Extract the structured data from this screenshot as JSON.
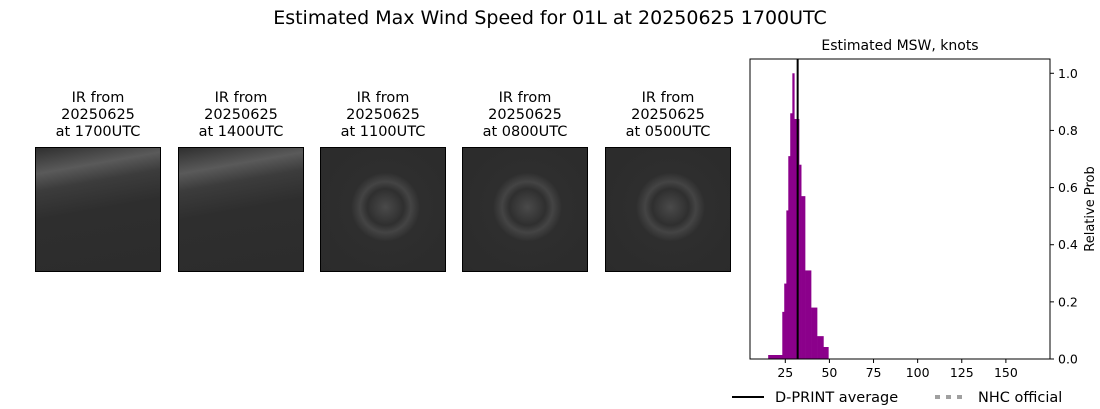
{
  "title": "Estimated Max Wind Speed for 01L at 20250625 1700UTC",
  "thumbnails": [
    {
      "l1": "IR from",
      "l2": "20250625",
      "l3": "at 1700UTC"
    },
    {
      "l1": "IR from",
      "l2": "20250625",
      "l3": "at 1400UTC"
    },
    {
      "l1": "IR from",
      "l2": "20250625",
      "l3": "at 1100UTC"
    },
    {
      "l1": "IR from",
      "l2": "20250625",
      "l3": "at 0800UTC"
    },
    {
      "l1": "IR from",
      "l2": "20250625",
      "l3": "at 0500UTC"
    }
  ],
  "chart_data": {
    "type": "bar",
    "title": "Estimated MSW, knots",
    "ylabel": "Relative Prob",
    "xlim": [
      5,
      175
    ],
    "ylim": [
      0,
      1.05
    ],
    "xticks": [
      25,
      50,
      75,
      100,
      125,
      150
    ],
    "yticks": [
      "0.0",
      "0.2",
      "0.4",
      "0.6",
      "0.8",
      "1.0"
    ],
    "bar_color": "#8b008b",
    "bins": [
      {
        "x0": 15.3,
        "x1": 23.3,
        "y": 0.014
      },
      {
        "x0": 23.3,
        "x1": 24.4,
        "y": 0.165
      },
      {
        "x0": 24.4,
        "x1": 25.6,
        "y": 0.264
      },
      {
        "x0": 25.6,
        "x1": 26.7,
        "y": 0.52
      },
      {
        "x0": 26.7,
        "x1": 27.8,
        "y": 0.71
      },
      {
        "x0": 27.8,
        "x1": 29.0,
        "y": 0.86
      },
      {
        "x0": 29.0,
        "x1": 30.1,
        "y": 1.0
      },
      {
        "x0": 30.1,
        "x1": 32.8,
        "y": 0.84
      },
      {
        "x0": 32.8,
        "x1": 34.0,
        "y": 0.68
      },
      {
        "x0": 34.0,
        "x1": 36.2,
        "y": 0.57
      },
      {
        "x0": 36.2,
        "x1": 39.6,
        "y": 0.31
      },
      {
        "x0": 39.6,
        "x1": 43.0,
        "y": 0.18
      },
      {
        "x0": 43.0,
        "x1": 46.6,
        "y": 0.08
      },
      {
        "x0": 46.6,
        "x1": 49.4,
        "y": 0.042
      }
    ],
    "dprint_average": 32,
    "legend": [
      {
        "label": "D-PRINT average",
        "style": "solid",
        "color": "#000000"
      },
      {
        "label": "NHC official",
        "style": "dotted",
        "color": "#a0a0a0"
      }
    ],
    "legend_placement": "bottom"
  }
}
